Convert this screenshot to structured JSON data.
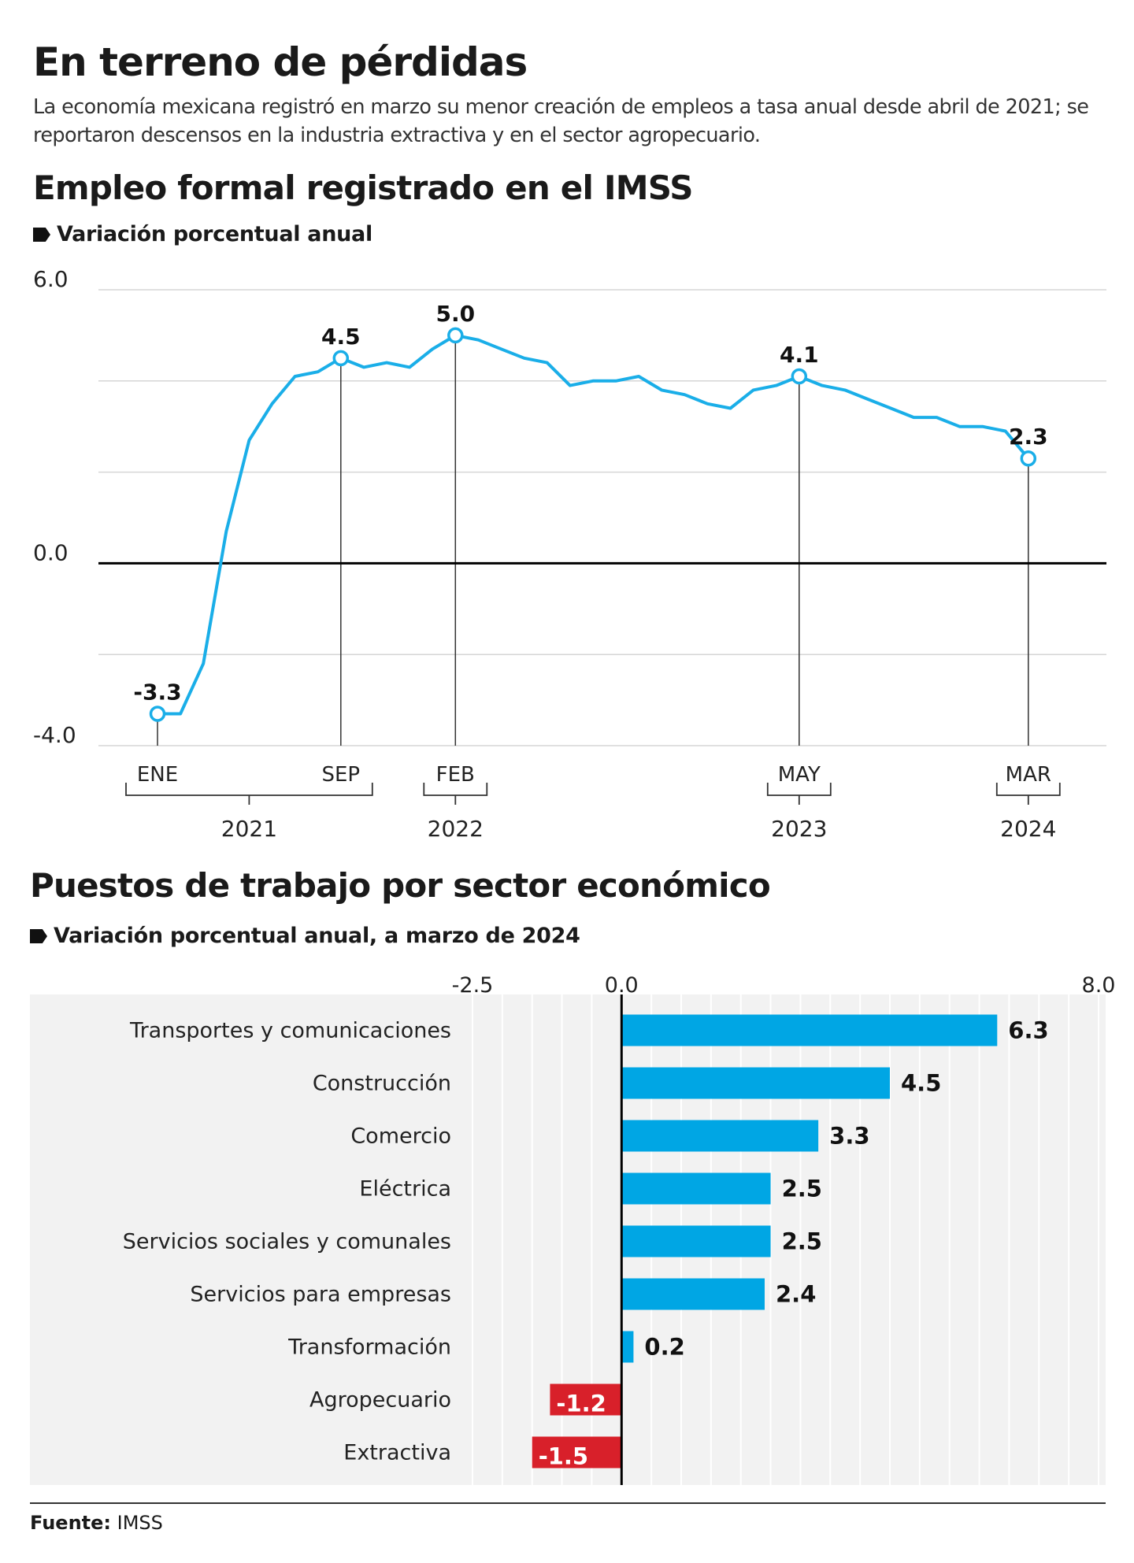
{
  "header": {
    "title": "En terreno de pérdidas",
    "intro": "La economía mexicana registró en marzo su menor creación de empleos a tasa anual desde abril de 2021; se reportaron descensos en la industria extractiva y en el sector agropecuario."
  },
  "chart1": {
    "heading": "Empleo formal registrado en el IMSS",
    "subheading": "Variación porcentual anual"
  },
  "chart2": {
    "heading": "Puestos de trabajo por sector económico",
    "subheading": "Variación porcentual anual, a marzo de 2024"
  },
  "footer": {
    "source_label": "Fuente:",
    "source_value": "IMSS"
  },
  "colors": {
    "line": "#1aaee8",
    "positive_bar": "#00a6e4",
    "negative_bar": "#d8202a",
    "axis": "#000000"
  },
  "chart_data": [
    {
      "type": "line",
      "title": "Empleo formal registrado en el IMSS",
      "subtitle": "Variación porcentual anual",
      "ylim": [
        -4.0,
        6.0
      ],
      "yticks": [
        {
          "value": 6.0,
          "label": "6.0"
        },
        {
          "value": 0.0,
          "label": "0.0"
        },
        {
          "value": -4.0,
          "label": "-4.0"
        }
      ],
      "gridlines": [
        6.0,
        4.0,
        2.0,
        0.0,
        -2.0,
        -4.0
      ],
      "x": [
        "2021-01",
        "2021-02",
        "2021-03",
        "2021-04",
        "2021-05",
        "2021-06",
        "2021-07",
        "2021-08",
        "2021-09",
        "2021-10",
        "2021-11",
        "2021-12",
        "2022-01",
        "2022-02",
        "2022-03",
        "2022-04",
        "2022-05",
        "2022-06",
        "2022-07",
        "2022-08",
        "2022-09",
        "2022-10",
        "2022-11",
        "2022-12",
        "2023-01",
        "2023-02",
        "2023-03",
        "2023-04",
        "2023-05",
        "2023-06",
        "2023-07",
        "2023-08",
        "2023-09",
        "2023-10",
        "2023-11",
        "2023-12",
        "2024-01",
        "2024-02",
        "2024-03"
      ],
      "values": [
        -3.3,
        -3.3,
        -2.2,
        0.7,
        2.7,
        3.5,
        4.1,
        4.2,
        4.5,
        4.3,
        4.4,
        4.3,
        4.7,
        5.0,
        4.9,
        4.7,
        4.5,
        4.4,
        3.9,
        4.0,
        4.0,
        4.1,
        3.8,
        3.7,
        3.5,
        3.4,
        3.8,
        3.9,
        4.1,
        3.9,
        3.8,
        3.6,
        3.4,
        3.2,
        3.2,
        3.0,
        3.0,
        2.9,
        2.3
      ],
      "highlights": [
        {
          "x": "2021-01",
          "value": -3.3,
          "label": "-3.3",
          "month": "ENE"
        },
        {
          "x": "2021-09",
          "value": 4.5,
          "label": "4.5",
          "month": "SEP"
        },
        {
          "x": "2022-02",
          "value": 5.0,
          "label": "5.0",
          "month": "FEB"
        },
        {
          "x": "2023-05",
          "value": 4.1,
          "label": "4.1",
          "month": "MAY"
        },
        {
          "x": "2024-03",
          "value": 2.3,
          "label": "2.3",
          "month": "MAR"
        }
      ],
      "year_groups": [
        {
          "year": "2021",
          "from": "2021-01",
          "to": "2021-09"
        },
        {
          "year": "2022",
          "from": "2022-02",
          "to": "2022-02"
        },
        {
          "year": "2023",
          "from": "2023-05",
          "to": "2023-05"
        },
        {
          "year": "2024",
          "from": "2024-03",
          "to": "2024-03"
        }
      ]
    },
    {
      "type": "bar",
      "orientation": "horizontal",
      "title": "Puestos de trabajo por sector económico",
      "subtitle": "Variación porcentual anual, a marzo de 2024",
      "xlim": [
        -2.5,
        8.0
      ],
      "xticks": [
        {
          "value": -2.5,
          "label": "-2.5"
        },
        {
          "value": 0.0,
          "label": "0.0"
        },
        {
          "value": 8.0,
          "label": "8.0"
        }
      ],
      "categories": [
        "Transportes y comunicaciones",
        "Construcción",
        "Comercio",
        "Eléctrica",
        "Servicios sociales y comunales",
        "Servicios para empresas",
        "Transformación",
        "Agropecuario",
        "Extractiva"
      ],
      "values": [
        6.3,
        4.5,
        3.3,
        2.5,
        2.5,
        2.4,
        0.2,
        -1.2,
        -1.5
      ],
      "labels": [
        "6.3",
        "4.5",
        "3.3",
        "2.5",
        "2.5",
        "2.4",
        "0.2",
        "-1.2",
        "-1.5"
      ]
    }
  ]
}
